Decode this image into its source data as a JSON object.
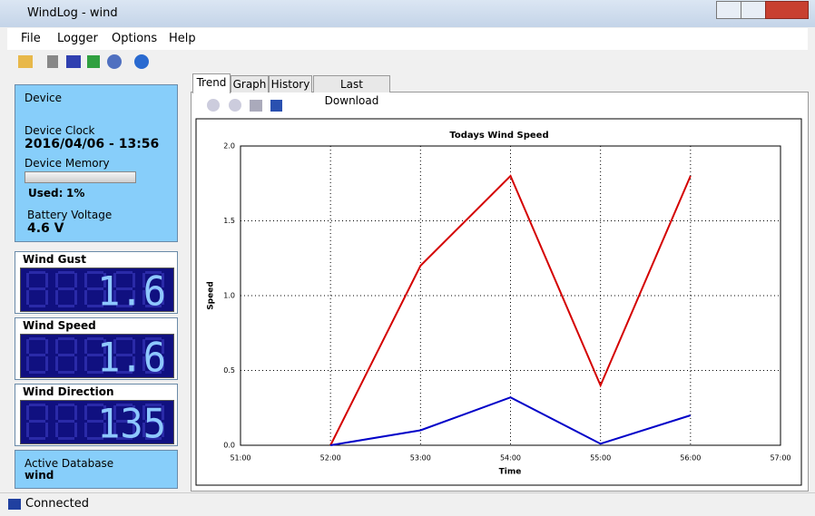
{
  "window": {
    "title": "WindLog - wind"
  },
  "menu": [
    "File",
    "Logger",
    "Options",
    "Help"
  ],
  "device": {
    "heading": "Device",
    "clock_label": "Device Clock",
    "clock": "2016/04/06 - 13:56",
    "memory_label": "Device Memory",
    "used_label": "Used:",
    "used_value": "1%",
    "battery_label": "Battery Voltage",
    "battery": "4.6 V"
  },
  "displays": [
    {
      "label": "Wind Gust",
      "value": "1.6"
    },
    {
      "label": "Wind Speed",
      "value": "1.6"
    },
    {
      "label": "Wind Direction",
      "value": "135"
    }
  ],
  "database": {
    "label": "Active Database",
    "name": "wind"
  },
  "tabs": [
    "Trend",
    "Graph",
    "History",
    "Last Download"
  ],
  "status": "Connected",
  "chart_data": {
    "type": "line",
    "title": "Todays Wind Speed",
    "x_label": "Time",
    "y_label": "Speed",
    "x": [
      52,
      53,
      54,
      55,
      56
    ],
    "series": [
      {
        "color": "#d40000",
        "values": [
          0.0,
          1.2,
          1.8,
          0.4,
          1.8
        ]
      },
      {
        "color": "#0000c8",
        "values": [
          0.0,
          0.1,
          0.32,
          0.01,
          0.2
        ]
      }
    ],
    "xlim": [
      51,
      57
    ],
    "xticks": [
      {
        "value": 51,
        "label": "51:00"
      },
      {
        "value": 52,
        "label": "52:00"
      },
      {
        "value": 53,
        "label": "53:00"
      },
      {
        "value": 54,
        "label": "54:00"
      },
      {
        "value": 55,
        "label": "55:00"
      },
      {
        "value": 56,
        "label": "56:00"
      },
      {
        "value": 57,
        "label": "57:00"
      }
    ],
    "ylim": [
      0,
      2
    ],
    "yticks": [
      {
        "value": 0,
        "label": "0.0"
      },
      0.5,
      {
        "value": 1,
        "label": "1.0"
      },
      1.5,
      {
        "value": 2,
        "label": "2.0"
      }
    ],
    "grid": true
  }
}
